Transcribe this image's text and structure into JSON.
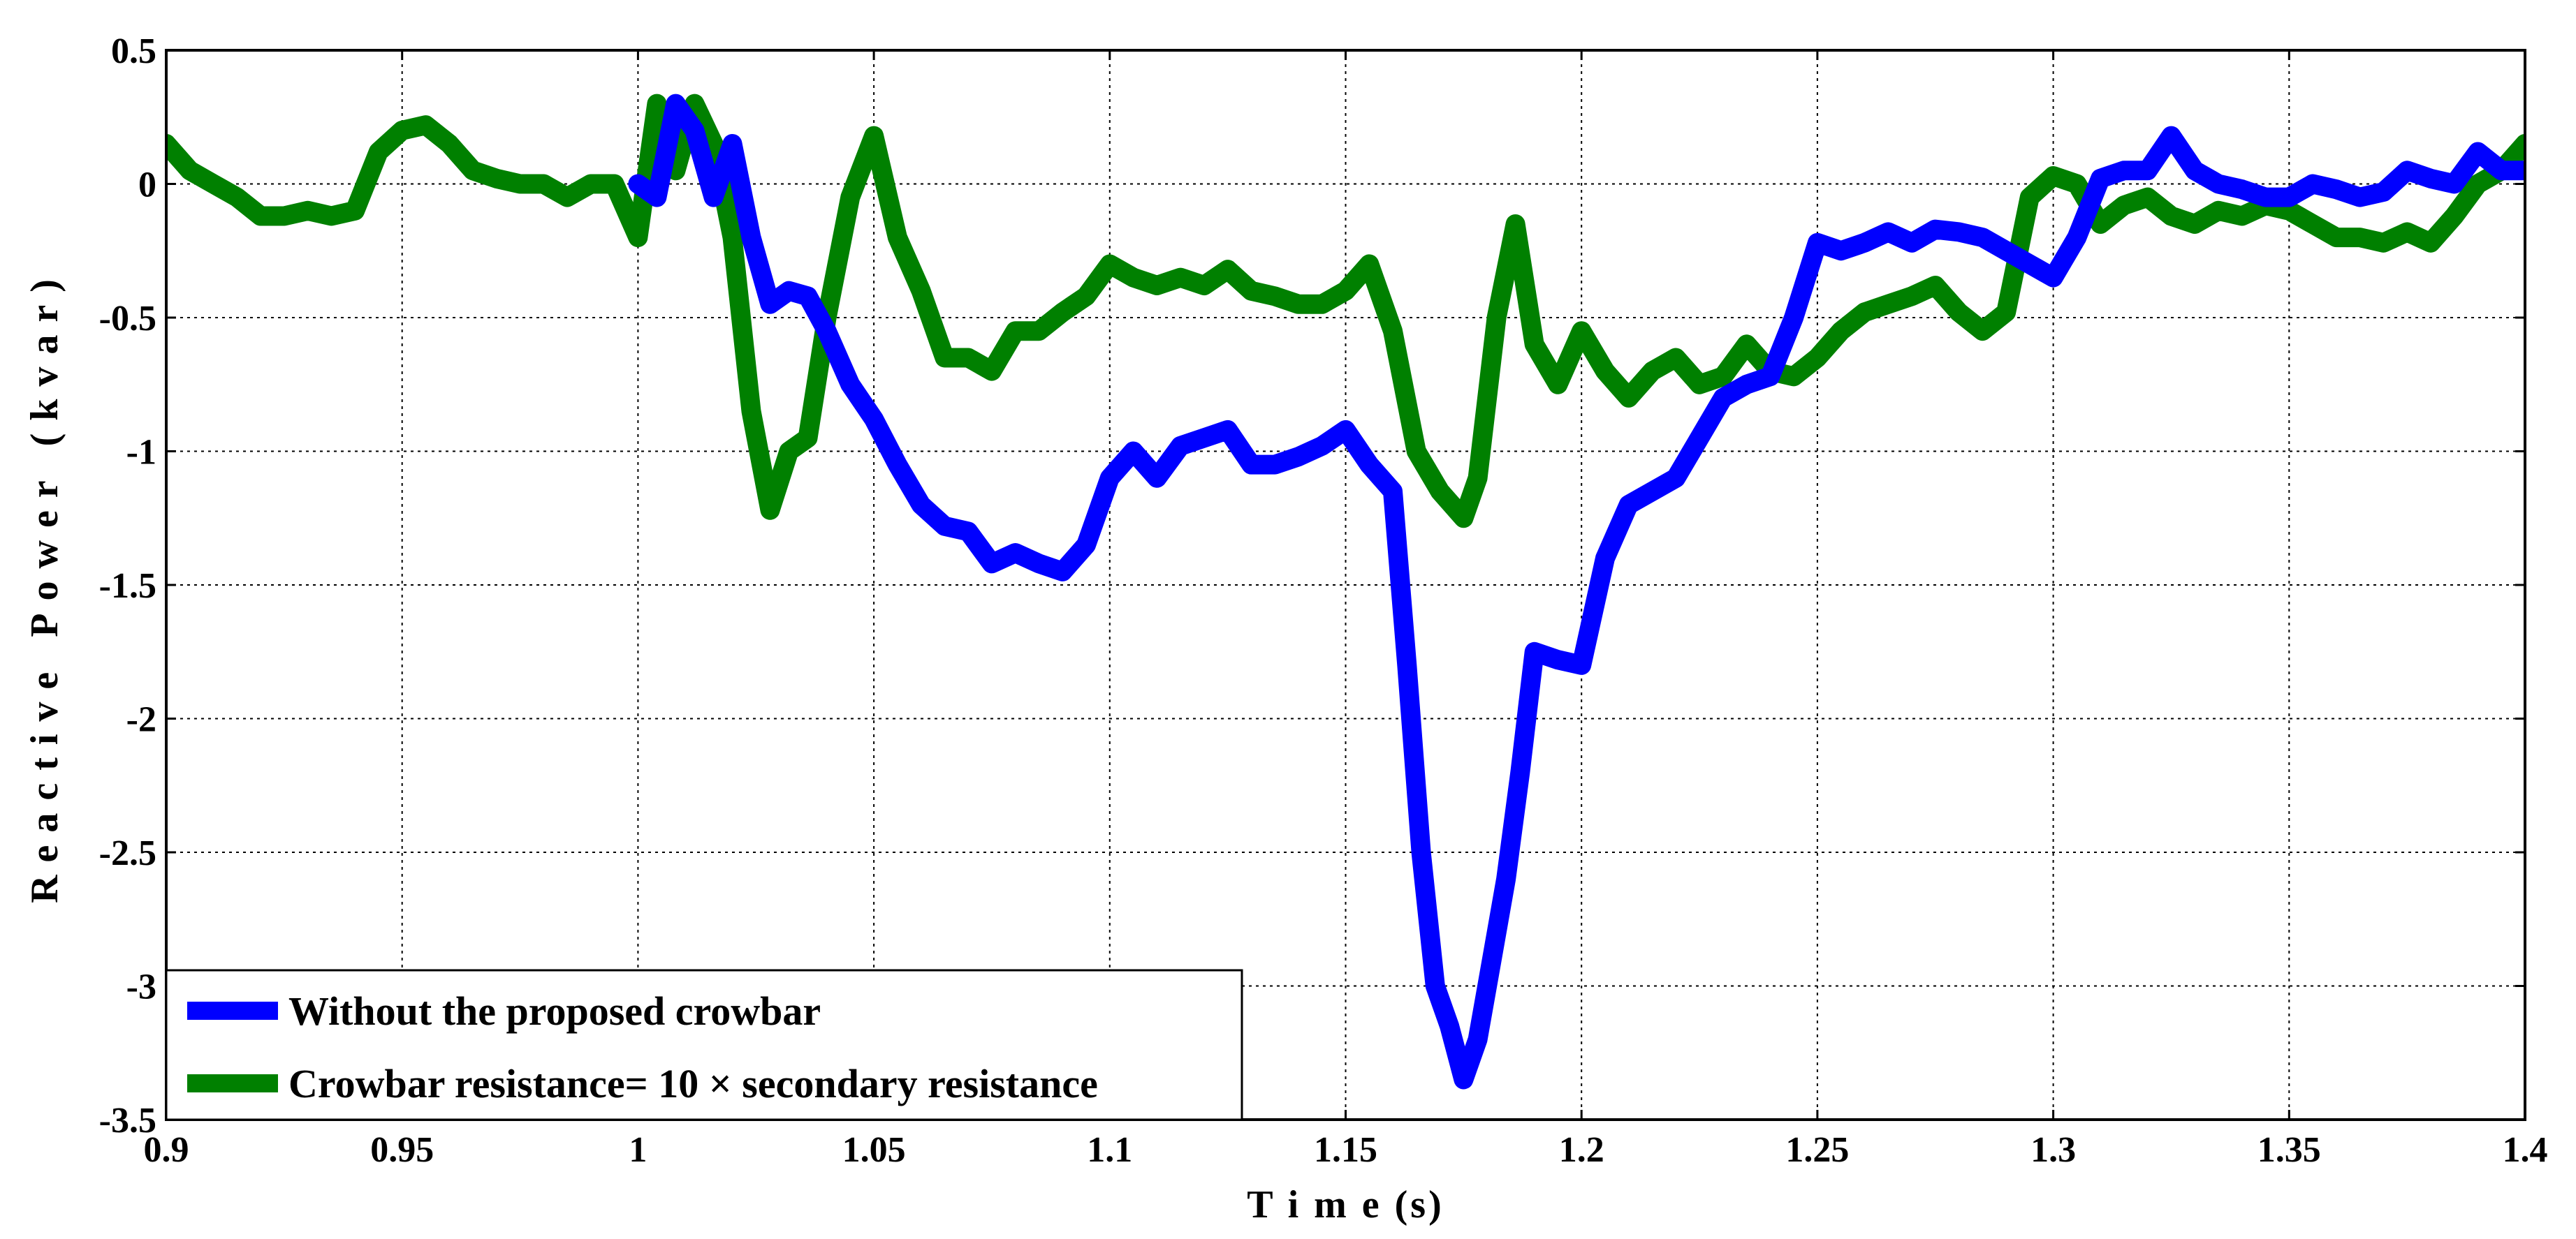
{
  "chart_data": {
    "type": "line",
    "title": "",
    "xlabel": "T i m e (s)",
    "ylabel": "Reactive Power (kvar)",
    "xlim": [
      0.9,
      1.4
    ],
    "ylim": [
      -3.5,
      0.5
    ],
    "grid": true,
    "legend_position": "bottom-left",
    "xticks": [
      0.9,
      0.95,
      1,
      1.05,
      1.1,
      1.15,
      1.2,
      1.25,
      1.3,
      1.35,
      1.4
    ],
    "xtick_labels": [
      "0.9",
      "0.95",
      "1",
      "1.05",
      "1.1",
      "1.15",
      "1.2",
      "1.25",
      "1.3",
      "1.35",
      "1.4"
    ],
    "yticks": [
      0.5,
      0,
      -0.5,
      -1,
      -1.5,
      -2,
      -2.5,
      -3,
      -3.5
    ],
    "ytick_labels": [
      "0.5",
      "0",
      "-0.5",
      "-1",
      "-1.5",
      "-2",
      "-2.5",
      "-3",
      "-3.5"
    ],
    "series": [
      {
        "name": "Without the proposed crowbar",
        "color": "#0000ff",
        "x": [
          1.0,
          1.004,
          1.008,
          1.012,
          1.016,
          1.02,
          1.024,
          1.028,
          1.032,
          1.036,
          1.04,
          1.045,
          1.05,
          1.055,
          1.06,
          1.065,
          1.07,
          1.075,
          1.08,
          1.085,
          1.09,
          1.095,
          1.1,
          1.105,
          1.11,
          1.115,
          1.12,
          1.125,
          1.13,
          1.135,
          1.14,
          1.145,
          1.15,
          1.155,
          1.16,
          1.163,
          1.166,
          1.169,
          1.172,
          1.175,
          1.178,
          1.181,
          1.184,
          1.187,
          1.19,
          1.195,
          1.2,
          1.205,
          1.21,
          1.215,
          1.22,
          1.225,
          1.23,
          1.235,
          1.24,
          1.245,
          1.25,
          1.255,
          1.26,
          1.265,
          1.27,
          1.275,
          1.28,
          1.285,
          1.29,
          1.295,
          1.3,
          1.305,
          1.31,
          1.315,
          1.32,
          1.325,
          1.33,
          1.335,
          1.34,
          1.345,
          1.35,
          1.355,
          1.36,
          1.365,
          1.37,
          1.375,
          1.38,
          1.385,
          1.39,
          1.395,
          1.4
        ],
        "y": [
          0.0,
          -0.05,
          0.3,
          0.2,
          -0.05,
          0.15,
          -0.2,
          -0.45,
          -0.4,
          -0.42,
          -0.55,
          -0.75,
          -0.88,
          -1.05,
          -1.2,
          -1.28,
          -1.3,
          -1.42,
          -1.38,
          -1.42,
          -1.45,
          -1.35,
          -1.1,
          -1.0,
          -1.1,
          -0.98,
          -0.95,
          -0.92,
          -1.05,
          -1.05,
          -1.02,
          -0.98,
          -0.92,
          -1.05,
          -1.15,
          -1.8,
          -2.5,
          -3.0,
          -3.15,
          -3.35,
          -3.2,
          -2.9,
          -2.6,
          -2.2,
          -1.75,
          -1.78,
          -1.8,
          -1.4,
          -1.2,
          -1.15,
          -1.1,
          -0.95,
          -0.8,
          -0.75,
          -0.72,
          -0.5,
          -0.22,
          -0.25,
          -0.22,
          -0.18,
          -0.22,
          -0.17,
          -0.18,
          -0.2,
          -0.25,
          -0.3,
          -0.35,
          -0.2,
          0.02,
          0.05,
          0.05,
          0.18,
          0.05,
          0.0,
          -0.02,
          -0.05,
          -0.05,
          0.0,
          -0.02,
          -0.05,
          -0.03,
          0.05,
          0.02,
          0.0,
          0.12,
          0.05,
          0.05
        ]
      },
      {
        "name": "Crowbar resistance= 10 × secondary resistance",
        "color": "#008000",
        "x": [
          0.9,
          0.905,
          0.91,
          0.915,
          0.92,
          0.925,
          0.93,
          0.935,
          0.94,
          0.945,
          0.95,
          0.955,
          0.96,
          0.965,
          0.97,
          0.975,
          0.98,
          0.985,
          0.99,
          0.995,
          1.0,
          1.004,
          1.008,
          1.012,
          1.016,
          1.02,
          1.024,
          1.028,
          1.032,
          1.036,
          1.04,
          1.045,
          1.05,
          1.055,
          1.06,
          1.065,
          1.07,
          1.075,
          1.08,
          1.085,
          1.09,
          1.095,
          1.1,
          1.105,
          1.11,
          1.115,
          1.12,
          1.125,
          1.13,
          1.135,
          1.14,
          1.145,
          1.15,
          1.155,
          1.16,
          1.165,
          1.17,
          1.175,
          1.178,
          1.182,
          1.186,
          1.19,
          1.195,
          1.2,
          1.205,
          1.21,
          1.215,
          1.22,
          1.225,
          1.23,
          1.235,
          1.24,
          1.245,
          1.25,
          1.255,
          1.26,
          1.265,
          1.27,
          1.275,
          1.28,
          1.285,
          1.29,
          1.295,
          1.3,
          1.305,
          1.31,
          1.315,
          1.32,
          1.325,
          1.33,
          1.335,
          1.34,
          1.345,
          1.35,
          1.355,
          1.36,
          1.365,
          1.37,
          1.375,
          1.38,
          1.385,
          1.39,
          1.395,
          1.4
        ],
        "y": [
          0.15,
          0.05,
          0.0,
          -0.05,
          -0.12,
          -0.12,
          -0.1,
          -0.12,
          -0.1,
          0.12,
          0.2,
          0.22,
          0.15,
          0.05,
          0.02,
          0.0,
          0.0,
          -0.05,
          0.0,
          0.0,
          -0.2,
          0.3,
          0.05,
          0.3,
          0.15,
          -0.2,
          -0.85,
          -1.22,
          -1.0,
          -0.95,
          -0.5,
          -0.05,
          0.18,
          -0.2,
          -0.4,
          -0.65,
          -0.65,
          -0.7,
          -0.55,
          -0.55,
          -0.48,
          -0.42,
          -0.3,
          -0.35,
          -0.38,
          -0.35,
          -0.38,
          -0.32,
          -0.4,
          -0.42,
          -0.45,
          -0.45,
          -0.4,
          -0.3,
          -0.55,
          -1.0,
          -1.15,
          -1.25,
          -1.1,
          -0.5,
          -0.15,
          -0.6,
          -0.75,
          -0.55,
          -0.7,
          -0.8,
          -0.7,
          -0.65,
          -0.75,
          -0.72,
          -0.6,
          -0.7,
          -0.72,
          -0.65,
          -0.55,
          -0.48,
          -0.45,
          -0.42,
          -0.38,
          -0.48,
          -0.55,
          -0.48,
          -0.05,
          0.03,
          0.0,
          -0.15,
          -0.08,
          -0.05,
          -0.12,
          -0.15,
          -0.1,
          -0.12,
          -0.08,
          -0.1,
          -0.15,
          -0.2,
          -0.2,
          -0.22,
          -0.18,
          -0.22,
          -0.12,
          0.0,
          0.05,
          0.15
        ]
      }
    ]
  }
}
